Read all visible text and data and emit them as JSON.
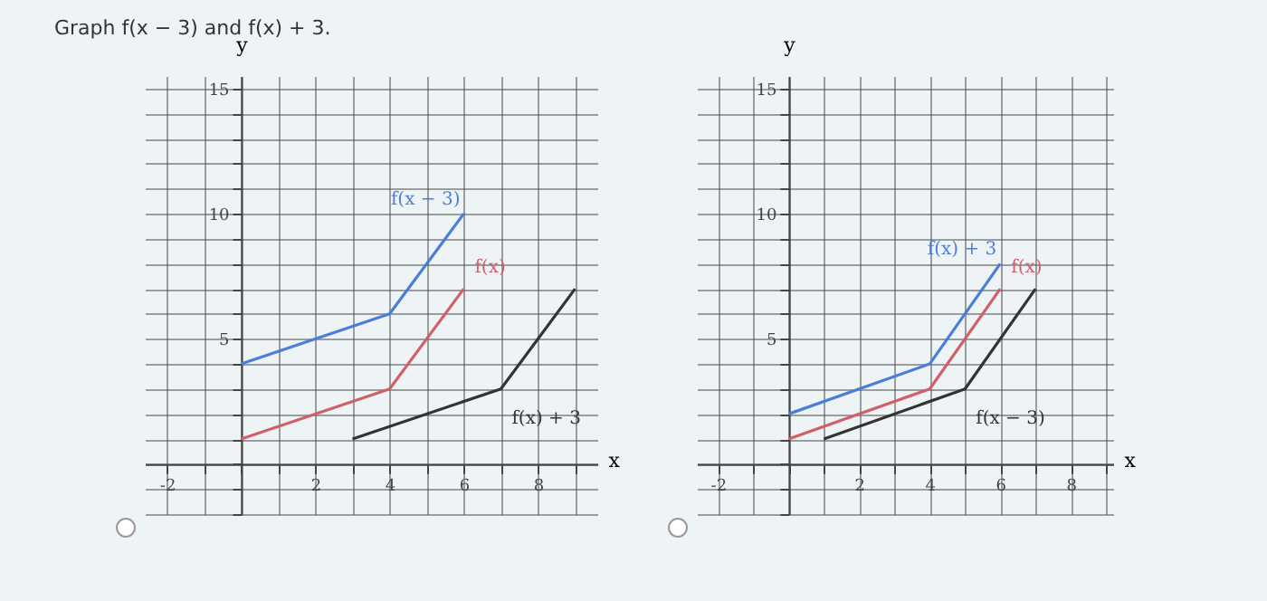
{
  "chart_data": [
    {
      "type": "line",
      "title": "Graph f(x − 3) and f(x) + 3.",
      "xlabel": "x",
      "ylabel": "y",
      "xlim": [
        -2.6,
        9.6
      ],
      "ylim": [
        -2,
        15.5
      ],
      "xticks": [
        {
          "value": -2,
          "label": "-2"
        },
        {
          "value": -1,
          "label": null
        },
        {
          "value": 0,
          "label": null
        },
        {
          "value": 1,
          "label": null
        },
        2,
        {
          "value": 3,
          "label": null
        },
        4,
        {
          "value": 5,
          "label": null
        },
        6,
        {
          "value": 7,
          "label": null
        },
        8,
        {
          "value": 9,
          "label": null
        }
      ],
      "yticks": [
        {
          "value": -2,
          "label": null
        },
        {
          "value": -1,
          "label": null
        },
        {
          "value": 0,
          "label": null
        },
        {
          "value": 1,
          "label": null
        },
        {
          "value": 2,
          "label": null
        },
        {
          "value": 3,
          "label": null
        },
        {
          "value": 4,
          "label": null
        },
        5,
        {
          "value": 6,
          "label": null
        },
        {
          "value": 7,
          "label": null
        },
        {
          "value": 8,
          "label": null
        },
        {
          "value": 9,
          "label": null
        },
        10,
        {
          "value": 11,
          "label": null
        },
        {
          "value": 12,
          "label": null
        },
        {
          "value": 13,
          "label": null
        },
        {
          "value": 14,
          "label": null
        },
        15
      ],
      "grid": true,
      "legend": false,
      "series": [
        {
          "name": "f(x − 3)",
          "color": "#4a7fd8",
          "x": [
            0,
            4,
            6
          ],
          "values": [
            4,
            6,
            10
          ]
        },
        {
          "name": "f(x)",
          "color": "#d0606a",
          "x": [
            0,
            4,
            6
          ],
          "values": [
            1,
            3,
            7
          ]
        },
        {
          "name": "f(x) + 3",
          "color": "#333333",
          "x": [
            3,
            7,
            9
          ],
          "values": [
            1,
            3,
            7
          ]
        }
      ]
    },
    {
      "type": "line",
      "xlabel": "x",
      "ylabel": "y",
      "xlim": [
        -2.6,
        9.2
      ],
      "ylim": [
        -2,
        15.5
      ],
      "xticks": [
        {
          "value": -2,
          "label": "-2"
        },
        {
          "value": -1,
          "label": null
        },
        {
          "value": 0,
          "label": null
        },
        {
          "value": 1,
          "label": null
        },
        2,
        {
          "value": 3,
          "label": null
        },
        4,
        {
          "value": 5,
          "label": null
        },
        6,
        {
          "value": 7,
          "label": null
        },
        8,
        {
          "value": 9,
          "label": null
        }
      ],
      "yticks": [
        {
          "value": -2,
          "label": null
        },
        {
          "value": -1,
          "label": null
        },
        {
          "value": 0,
          "label": null
        },
        {
          "value": 1,
          "label": null
        },
        {
          "value": 2,
          "label": null
        },
        {
          "value": 3,
          "label": null
        },
        {
          "value": 4,
          "label": null
        },
        5,
        {
          "value": 6,
          "label": null
        },
        {
          "value": 7,
          "label": null
        },
        {
          "value": 8,
          "label": null
        },
        {
          "value": 9,
          "label": null
        },
        10,
        {
          "value": 11,
          "label": null
        },
        {
          "value": 12,
          "label": null
        },
        {
          "value": 13,
          "label": null
        },
        {
          "value": 14,
          "label": null
        },
        15
      ],
      "grid": true,
      "legend": false,
      "series": [
        {
          "name": "f(x) + 3",
          "color": "#4a7fd8",
          "x": [
            0,
            4,
            6
          ],
          "values": [
            2,
            4,
            8
          ]
        },
        {
          "name": "f(x)",
          "color": "#d0606a",
          "x": [
            0,
            4,
            6
          ],
          "values": [
            1,
            3,
            7
          ]
        },
        {
          "name": "f(x − 3)",
          "color": "#333333",
          "x": [
            1,
            5,
            7
          ],
          "values": [
            1,
            3,
            7
          ]
        }
      ]
    }
  ]
}
